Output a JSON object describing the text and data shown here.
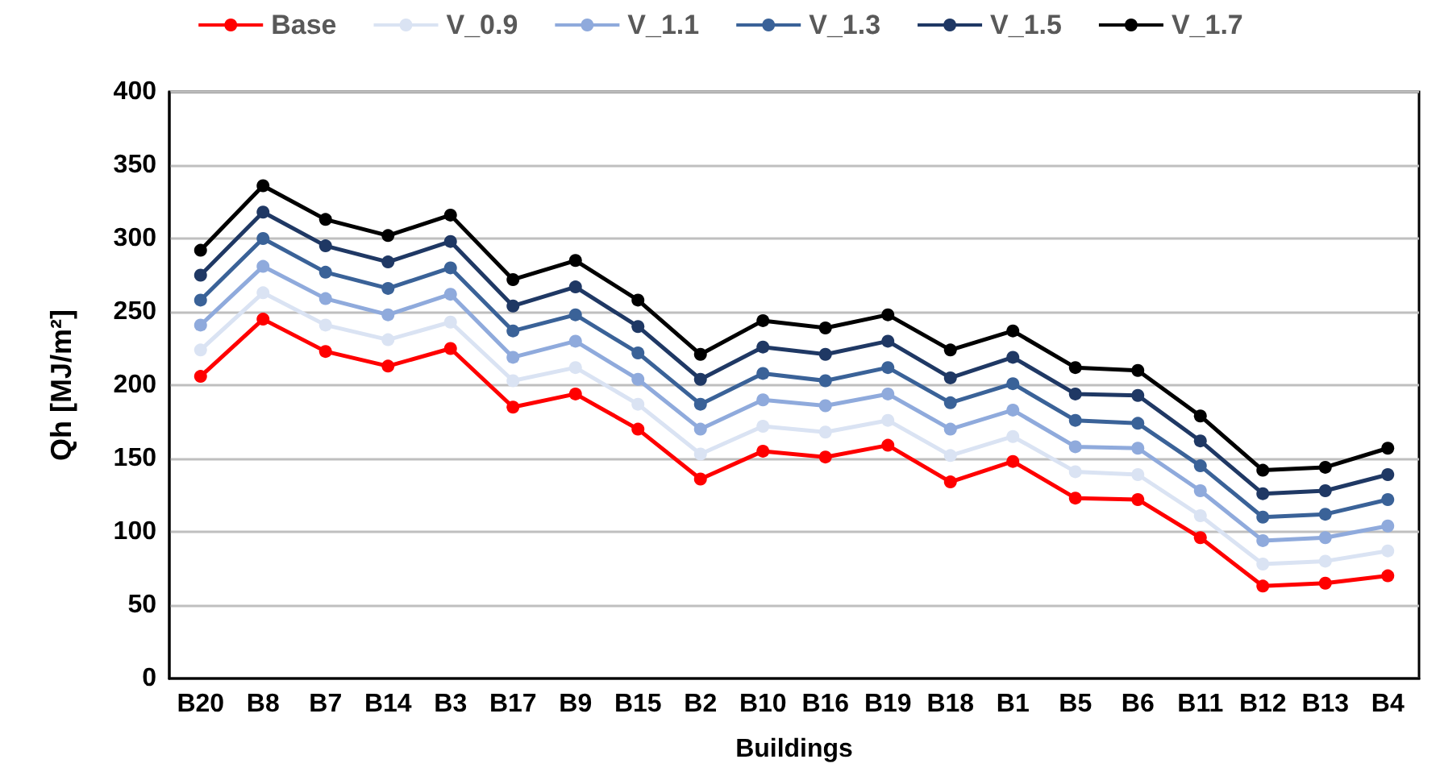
{
  "chart_data": {
    "type": "line",
    "xlabel": "Buildings",
    "ylabel": "Qh [MJ/m²]",
    "categories": [
      "B20",
      "B8",
      "B7",
      "B14",
      "B3",
      "B17",
      "B9",
      "B15",
      "B2",
      "B10",
      "B16",
      "B19",
      "B18",
      "B1",
      "B5",
      "B6",
      "B11",
      "B12",
      "B13",
      "B4"
    ],
    "series": [
      {
        "name": "Base",
        "color": "#ff0000",
        "values": [
          206,
          245,
          223,
          213,
          225,
          185,
          194,
          170,
          136,
          155,
          151,
          159,
          134,
          148,
          123,
          122,
          96,
          63,
          65,
          70
        ]
      },
      {
        "name": "V_0.9",
        "color": "#dae3f3",
        "values": [
          224,
          263,
          241,
          231,
          243,
          203,
          212,
          187,
          153,
          172,
          168,
          176,
          152,
          165,
          141,
          139,
          111,
          78,
          80,
          87
        ]
      },
      {
        "name": "V_1.1",
        "color": "#8faadc",
        "values": [
          241,
          281,
          259,
          248,
          262,
          219,
          230,
          204,
          170,
          190,
          186,
          194,
          170,
          183,
          158,
          157,
          128,
          94,
          96,
          104
        ]
      },
      {
        "name": "V_1.3",
        "color": "#3a6298",
        "values": [
          258,
          300,
          277,
          266,
          280,
          237,
          248,
          222,
          187,
          208,
          203,
          212,
          188,
          201,
          176,
          174,
          145,
          110,
          112,
          122
        ]
      },
      {
        "name": "V_1.5",
        "color": "#1f3864",
        "values": [
          275,
          318,
          295,
          284,
          298,
          254,
          267,
          240,
          204,
          226,
          221,
          230,
          205,
          219,
          194,
          193,
          162,
          126,
          128,
          139
        ]
      },
      {
        "name": "V_1.7",
        "color": "#000000",
        "values": [
          292,
          336,
          313,
          302,
          316,
          272,
          285,
          258,
          221,
          244,
          239,
          248,
          224,
          237,
          212,
          210,
          179,
          142,
          144,
          157
        ]
      }
    ],
    "ylim": [
      0,
      400
    ],
    "yticks": [
      0,
      50,
      100,
      150,
      200,
      250,
      300,
      350,
      400
    ],
    "grid": "y",
    "legend": "top",
    "marker": "circle",
    "line_style": "solid"
  }
}
